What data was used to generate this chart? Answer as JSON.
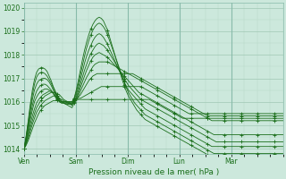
{
  "bg_color": "#cce8dc",
  "grid_color_major": "#a0c8b4",
  "grid_color_minor": "#b8d8c8",
  "line_color": "#1a6e1a",
  "ylim": [
    1013.8,
    1020.2
  ],
  "yticks": [
    1014,
    1015,
    1016,
    1017,
    1018,
    1019,
    1020
  ],
  "day_labels": [
    "Ven",
    "Sam",
    "Dim",
    "Lun",
    "Mar"
  ],
  "day_positions": [
    0,
    24,
    48,
    72,
    96
  ],
  "xlabel": "Pression niveau de la mer( hPa )",
  "total_hours": 120,
  "series": [
    [
      1014.0,
      1014.15,
      1014.35,
      1014.6,
      1014.85,
      1015.1,
      1015.3,
      1015.5,
      1015.65,
      1015.75,
      1015.85,
      1015.9,
      1015.95,
      1016.0,
      1016.05,
      1016.05,
      1016.05,
      1016.05,
      1016.0,
      1015.95,
      1015.9,
      1015.85,
      1015.8,
      1015.75,
      1015.95,
      1016.05,
      1016.1,
      1016.1,
      1016.1,
      1016.1,
      1016.1,
      1016.1,
      1016.1,
      1016.1,
      1016.1,
      1016.1,
      1016.1,
      1016.1,
      1016.1,
      1016.1,
      1016.1,
      1016.1,
      1016.1,
      1016.1,
      1016.1,
      1016.1,
      1016.1,
      1016.1,
      1016.1,
      1016.1,
      1016.1,
      1016.1,
      1016.1,
      1016.1,
      1016.1,
      1016.1,
      1016.1,
      1016.1,
      1016.1,
      1016.1,
      1016.1,
      1016.05,
      1016.0,
      1015.95,
      1015.9,
      1015.85,
      1015.8,
      1015.75,
      1015.7,
      1015.65,
      1015.6,
      1015.55,
      1015.5,
      1015.45,
      1015.4,
      1015.35,
      1015.3,
      1015.3,
      1015.3,
      1015.3,
      1015.3,
      1015.3,
      1015.3,
      1015.3,
      1015.3,
      1015.3,
      1015.3,
      1015.3,
      1015.3,
      1015.3,
      1015.3,
      1015.3,
      1015.3,
      1015.3,
      1015.3,
      1015.3,
      1015.3,
      1015.3,
      1015.3,
      1015.3,
      1015.3,
      1015.3,
      1015.3,
      1015.3,
      1015.3,
      1015.3,
      1015.3,
      1015.3,
      1015.3,
      1015.3,
      1015.3,
      1015.3,
      1015.3,
      1015.3,
      1015.3,
      1015.3,
      1015.3,
      1015.3,
      1015.3,
      1015.3,
      1015.3,
      1015.3,
      1015.3,
      1015.3,
      1015.3
    ],
    [
      1014.0,
      1014.2,
      1014.45,
      1014.75,
      1015.05,
      1015.3,
      1015.55,
      1015.7,
      1015.85,
      1015.95,
      1016.05,
      1016.1,
      1016.15,
      1016.2,
      1016.25,
      1016.25,
      1016.2,
      1016.15,
      1016.1,
      1016.05,
      1016.0,
      1015.95,
      1015.9,
      1015.85,
      1016.05,
      1016.1,
      1016.15,
      1016.15,
      1016.2,
      1016.25,
      1016.3,
      1016.35,
      1016.4,
      1016.45,
      1016.5,
      1016.55,
      1016.6,
      1016.65,
      1016.65,
      1016.65,
      1016.65,
      1016.65,
      1016.65,
      1016.65,
      1016.65,
      1016.65,
      1016.65,
      1016.65,
      1016.65,
      1016.65,
      1016.65,
      1016.65,
      1016.65,
      1016.65,
      1016.65,
      1016.65,
      1016.65,
      1016.6,
      1016.55,
      1016.5,
      1016.45,
      1016.4,
      1016.35,
      1016.3,
      1016.25,
      1016.2,
      1016.15,
      1016.1,
      1016.05,
      1016.0,
      1015.95,
      1015.9,
      1015.85,
      1015.8,
      1015.75,
      1015.7,
      1015.65,
      1015.6,
      1015.55,
      1015.5,
      1015.5,
      1015.5,
      1015.5,
      1015.5,
      1015.5,
      1015.5,
      1015.5,
      1015.5,
      1015.5,
      1015.5,
      1015.5,
      1015.5,
      1015.5,
      1015.5,
      1015.5,
      1015.5,
      1015.5,
      1015.5,
      1015.5,
      1015.5,
      1015.5,
      1015.5,
      1015.5,
      1015.5,
      1015.5,
      1015.5,
      1015.5,
      1015.5,
      1015.5,
      1015.5,
      1015.5,
      1015.5,
      1015.5,
      1015.5,
      1015.5,
      1015.5,
      1015.5,
      1015.5,
      1015.5,
      1015.5,
      1015.5,
      1015.5,
      1015.5,
      1015.5,
      1015.5
    ],
    [
      1014.0,
      1014.25,
      1014.55,
      1014.9,
      1015.2,
      1015.5,
      1015.75,
      1015.9,
      1016.05,
      1016.15,
      1016.25,
      1016.3,
      1016.35,
      1016.4,
      1016.4,
      1016.4,
      1016.35,
      1016.3,
      1016.2,
      1016.1,
      1016.05,
      1016.0,
      1015.95,
      1015.9,
      1016.05,
      1016.1,
      1016.2,
      1016.3,
      1016.45,
      1016.6,
      1016.75,
      1016.9,
      1017.0,
      1017.1,
      1017.15,
      1017.2,
      1017.2,
      1017.2,
      1017.2,
      1017.2,
      1017.2,
      1017.2,
      1017.2,
      1017.2,
      1017.2,
      1017.2,
      1017.2,
      1017.2,
      1017.2,
      1017.2,
      1017.2,
      1017.2,
      1017.2,
      1017.15,
      1017.1,
      1017.05,
      1017.0,
      1016.95,
      1016.9,
      1016.85,
      1016.8,
      1016.75,
      1016.7,
      1016.65,
      1016.6,
      1016.55,
      1016.5,
      1016.45,
      1016.4,
      1016.35,
      1016.3,
      1016.25,
      1016.2,
      1016.15,
      1016.1,
      1016.05,
      1016.0,
      1015.95,
      1015.9,
      1015.85,
      1015.8,
      1015.75,
      1015.7,
      1015.65,
      1015.6,
      1015.55,
      1015.5,
      1015.45,
      1015.4,
      1015.4,
      1015.4,
      1015.4,
      1015.4,
      1015.4,
      1015.4,
      1015.4,
      1015.4,
      1015.4,
      1015.4,
      1015.4,
      1015.4,
      1015.4,
      1015.4,
      1015.4,
      1015.4,
      1015.4,
      1015.4,
      1015.4,
      1015.4,
      1015.4,
      1015.4,
      1015.4,
      1015.4,
      1015.4,
      1015.4,
      1015.4,
      1015.4,
      1015.4,
      1015.4,
      1015.4,
      1015.4,
      1015.4,
      1015.4,
      1015.4,
      1015.4
    ],
    [
      1014.0,
      1014.3,
      1014.65,
      1015.05,
      1015.4,
      1015.7,
      1015.95,
      1016.1,
      1016.2,
      1016.3,
      1016.35,
      1016.4,
      1016.45,
      1016.45,
      1016.4,
      1016.35,
      1016.25,
      1016.15,
      1016.05,
      1015.95,
      1015.9,
      1015.9,
      1015.9,
      1015.9,
      1016.0,
      1016.1,
      1016.25,
      1016.45,
      1016.65,
      1016.85,
      1017.05,
      1017.2,
      1017.35,
      1017.5,
      1017.6,
      1017.65,
      1017.7,
      1017.7,
      1017.7,
      1017.7,
      1017.7,
      1017.65,
      1017.6,
      1017.55,
      1017.5,
      1017.45,
      1017.4,
      1017.35,
      1017.3,
      1017.25,
      1017.2,
      1017.15,
      1017.1,
      1017.05,
      1017.0,
      1016.95,
      1016.9,
      1016.85,
      1016.8,
      1016.75,
      1016.7,
      1016.65,
      1016.6,
      1016.55,
      1016.5,
      1016.45,
      1016.4,
      1016.35,
      1016.3,
      1016.25,
      1016.2,
      1016.15,
      1016.1,
      1016.05,
      1016.0,
      1015.95,
      1015.9,
      1015.85,
      1015.8,
      1015.75,
      1015.7,
      1015.65,
      1015.6,
      1015.55,
      1015.5,
      1015.45,
      1015.4,
      1015.35,
      1015.3,
      1015.25,
      1015.2,
      1015.2,
      1015.2,
      1015.2,
      1015.2,
      1015.2,
      1015.2,
      1015.2,
      1015.2,
      1015.2,
      1015.2,
      1015.2,
      1015.2,
      1015.2,
      1015.2,
      1015.2,
      1015.2,
      1015.2,
      1015.2,
      1015.2,
      1015.2,
      1015.2,
      1015.2,
      1015.2,
      1015.2,
      1015.2,
      1015.2,
      1015.2,
      1015.2,
      1015.2,
      1015.2,
      1015.2,
      1015.2,
      1015.2,
      1015.2
    ],
    [
      1014.0,
      1014.35,
      1014.8,
      1015.25,
      1015.65,
      1016.0,
      1016.2,
      1016.35,
      1016.45,
      1016.5,
      1016.55,
      1016.55,
      1016.5,
      1016.45,
      1016.35,
      1016.25,
      1016.1,
      1016.0,
      1015.95,
      1015.95,
      1015.95,
      1015.95,
      1015.95,
      1015.95,
      1016.05,
      1016.15,
      1016.35,
      1016.6,
      1016.85,
      1017.1,
      1017.35,
      1017.55,
      1017.75,
      1017.9,
      1018.0,
      1018.05,
      1018.1,
      1018.05,
      1018.0,
      1017.95,
      1017.9,
      1017.8,
      1017.7,
      1017.6,
      1017.5,
      1017.4,
      1017.3,
      1017.2,
      1017.1,
      1017.0,
      1016.9,
      1016.8,
      1016.7,
      1016.6,
      1016.5,
      1016.4,
      1016.35,
      1016.3,
      1016.25,
      1016.2,
      1016.15,
      1016.1,
      1016.05,
      1016.0,
      1015.95,
      1015.9,
      1015.85,
      1015.8,
      1015.75,
      1015.7,
      1015.65,
      1015.6,
      1015.55,
      1015.5,
      1015.45,
      1015.4,
      1015.35,
      1015.3,
      1015.25,
      1015.2,
      1015.15,
      1015.1,
      1015.05,
      1015.0,
      1014.95,
      1014.9,
      1014.85,
      1014.8,
      1014.75,
      1014.7,
      1014.65,
      1014.6,
      1014.6,
      1014.6,
      1014.6,
      1014.6,
      1014.6,
      1014.6,
      1014.6,
      1014.6,
      1014.6,
      1014.6,
      1014.6,
      1014.6,
      1014.6,
      1014.6,
      1014.6,
      1014.6,
      1014.6,
      1014.6,
      1014.6,
      1014.6,
      1014.6,
      1014.6,
      1014.6,
      1014.6,
      1014.6,
      1014.6,
      1014.6,
      1014.6,
      1014.6,
      1014.6,
      1014.6,
      1014.6,
      1014.6
    ],
    [
      1014.0,
      1014.4,
      1014.9,
      1015.4,
      1015.85,
      1016.2,
      1016.45,
      1016.6,
      1016.7,
      1016.75,
      1016.75,
      1016.7,
      1016.6,
      1016.5,
      1016.35,
      1016.2,
      1016.1,
      1016.0,
      1015.95,
      1015.95,
      1015.95,
      1015.95,
      1015.95,
      1015.95,
      1016.05,
      1016.2,
      1016.45,
      1016.75,
      1017.05,
      1017.35,
      1017.6,
      1017.85,
      1018.05,
      1018.2,
      1018.35,
      1018.45,
      1018.5,
      1018.45,
      1018.4,
      1018.3,
      1018.2,
      1018.05,
      1017.9,
      1017.75,
      1017.6,
      1017.45,
      1017.3,
      1017.15,
      1017.0,
      1016.85,
      1016.7,
      1016.6,
      1016.5,
      1016.4,
      1016.3,
      1016.2,
      1016.1,
      1016.05,
      1016.0,
      1015.95,
      1015.9,
      1015.85,
      1015.8,
      1015.75,
      1015.7,
      1015.65,
      1015.6,
      1015.55,
      1015.5,
      1015.45,
      1015.4,
      1015.35,
      1015.3,
      1015.25,
      1015.2,
      1015.15,
      1015.1,
      1015.05,
      1015.0,
      1014.95,
      1014.9,
      1014.85,
      1014.8,
      1014.75,
      1014.7,
      1014.65,
      1014.6,
      1014.55,
      1014.5,
      1014.45,
      1014.4,
      1014.35,
      1014.3,
      1014.3,
      1014.3,
      1014.3,
      1014.3,
      1014.3,
      1014.3,
      1014.3,
      1014.3,
      1014.3,
      1014.3,
      1014.3,
      1014.3,
      1014.3,
      1014.3,
      1014.3,
      1014.3,
      1014.3,
      1014.3,
      1014.3,
      1014.3,
      1014.3,
      1014.3,
      1014.3,
      1014.3,
      1014.3,
      1014.3,
      1014.3,
      1014.3,
      1014.3,
      1014.3,
      1014.3,
      1014.3
    ],
    [
      1014.0,
      1014.45,
      1015.0,
      1015.6,
      1016.1,
      1016.5,
      1016.75,
      1016.9,
      1016.95,
      1017.0,
      1017.0,
      1016.95,
      1016.85,
      1016.7,
      1016.5,
      1016.3,
      1016.15,
      1016.05,
      1016.0,
      1016.0,
      1016.0,
      1016.0,
      1016.0,
      1016.0,
      1016.1,
      1016.3,
      1016.6,
      1016.95,
      1017.3,
      1017.65,
      1017.95,
      1018.2,
      1018.4,
      1018.6,
      1018.75,
      1018.85,
      1018.9,
      1018.85,
      1018.75,
      1018.6,
      1018.45,
      1018.25,
      1018.05,
      1017.85,
      1017.65,
      1017.45,
      1017.25,
      1017.05,
      1016.85,
      1016.65,
      1016.5,
      1016.4,
      1016.3,
      1016.2,
      1016.1,
      1016.0,
      1015.9,
      1015.8,
      1015.7,
      1015.65,
      1015.6,
      1015.55,
      1015.5,
      1015.45,
      1015.4,
      1015.35,
      1015.3,
      1015.25,
      1015.2,
      1015.15,
      1015.1,
      1015.05,
      1015.0,
      1014.95,
      1014.9,
      1014.85,
      1014.8,
      1014.75,
      1014.7,
      1014.65,
      1014.6,
      1014.55,
      1014.5,
      1014.45,
      1014.4,
      1014.35,
      1014.3,
      1014.25,
      1014.2,
      1014.15,
      1014.1,
      1014.1,
      1014.1,
      1014.1,
      1014.1,
      1014.1,
      1014.1,
      1014.1,
      1014.1,
      1014.1,
      1014.1,
      1014.1,
      1014.1,
      1014.1,
      1014.1,
      1014.1,
      1014.1,
      1014.1,
      1014.1,
      1014.1,
      1014.1,
      1014.1,
      1014.1,
      1014.1,
      1014.1,
      1014.1,
      1014.1,
      1014.1,
      1014.1,
      1014.1,
      1014.1,
      1014.1,
      1014.1,
      1014.1,
      1014.1
    ],
    [
      1014.0,
      1014.5,
      1015.1,
      1015.75,
      1016.3,
      1016.75,
      1017.05,
      1017.2,
      1017.25,
      1017.25,
      1017.2,
      1017.1,
      1016.95,
      1016.8,
      1016.6,
      1016.4,
      1016.2,
      1016.05,
      1016.0,
      1016.0,
      1016.0,
      1016.0,
      1016.0,
      1016.0,
      1016.15,
      1016.4,
      1016.75,
      1017.15,
      1017.55,
      1017.95,
      1018.3,
      1018.6,
      1018.85,
      1019.05,
      1019.2,
      1019.3,
      1019.35,
      1019.3,
      1019.2,
      1019.05,
      1018.85,
      1018.6,
      1018.35,
      1018.1,
      1017.85,
      1017.6,
      1017.35,
      1017.1,
      1016.85,
      1016.6,
      1016.4,
      1016.25,
      1016.1,
      1015.95,
      1015.85,
      1015.75,
      1015.65,
      1015.55,
      1015.45,
      1015.4,
      1015.35,
      1015.3,
      1015.25,
      1015.2,
      1015.15,
      1015.1,
      1015.05,
      1015.0,
      1014.95,
      1014.9,
      1014.85,
      1014.8,
      1014.75,
      1014.7,
      1014.65,
      1014.6,
      1014.55,
      1014.5,
      1014.45,
      1014.4,
      1014.35,
      1014.3,
      1014.25,
      1014.2,
      1014.15,
      1014.1,
      1014.05,
      1014.0,
      1013.95,
      1013.9,
      1013.85,
      1013.8,
      1013.8,
      1013.8,
      1013.8,
      1013.8,
      1013.8,
      1013.8,
      1013.8,
      1013.8,
      1013.8,
      1013.8,
      1013.8,
      1013.8,
      1013.8,
      1013.8,
      1013.8,
      1013.8,
      1013.8,
      1013.8,
      1013.8,
      1013.8,
      1013.8,
      1013.8,
      1013.8,
      1013.8,
      1013.8,
      1013.8,
      1013.8,
      1013.8,
      1013.8,
      1013.8,
      1013.8,
      1013.8,
      1013.8
    ],
    [
      1014.0,
      1014.55,
      1015.2,
      1015.9,
      1016.5,
      1016.95,
      1017.25,
      1017.4,
      1017.45,
      1017.45,
      1017.4,
      1017.3,
      1017.1,
      1016.9,
      1016.65,
      1016.45,
      1016.25,
      1016.1,
      1016.0,
      1016.0,
      1016.0,
      1016.0,
      1016.0,
      1016.0,
      1016.15,
      1016.5,
      1016.9,
      1017.35,
      1017.8,
      1018.2,
      1018.55,
      1018.85,
      1019.1,
      1019.3,
      1019.45,
      1019.55,
      1019.6,
      1019.55,
      1019.45,
      1019.25,
      1019.05,
      1018.75,
      1018.45,
      1018.15,
      1017.85,
      1017.55,
      1017.25,
      1016.95,
      1016.7,
      1016.45,
      1016.25,
      1016.1,
      1015.95,
      1015.8,
      1015.65,
      1015.55,
      1015.45,
      1015.35,
      1015.25,
      1015.2,
      1015.15,
      1015.1,
      1015.05,
      1015.0,
      1014.95,
      1014.9,
      1014.85,
      1014.8,
      1014.75,
      1014.7,
      1014.65,
      1014.6,
      1014.55,
      1014.5,
      1014.45,
      1014.4,
      1014.35,
      1014.3,
      1014.25,
      1014.2,
      1014.15,
      1014.1,
      1014.05,
      1014.0,
      1013.95,
      1013.9,
      1013.85,
      1013.8,
      1013.75,
      1013.7,
      1013.65,
      1013.6,
      1013.6,
      1013.6,
      1013.6,
      1013.6,
      1013.6,
      1013.6,
      1013.6,
      1013.6,
      1013.6,
      1013.6,
      1013.6,
      1013.6,
      1013.6,
      1013.6,
      1013.6,
      1013.6,
      1013.6,
      1013.6,
      1013.6,
      1013.6,
      1013.6,
      1013.6,
      1013.6,
      1013.6,
      1013.6,
      1013.6,
      1013.6,
      1013.6,
      1013.6,
      1013.6,
      1013.6,
      1013.6,
      1013.6
    ]
  ]
}
